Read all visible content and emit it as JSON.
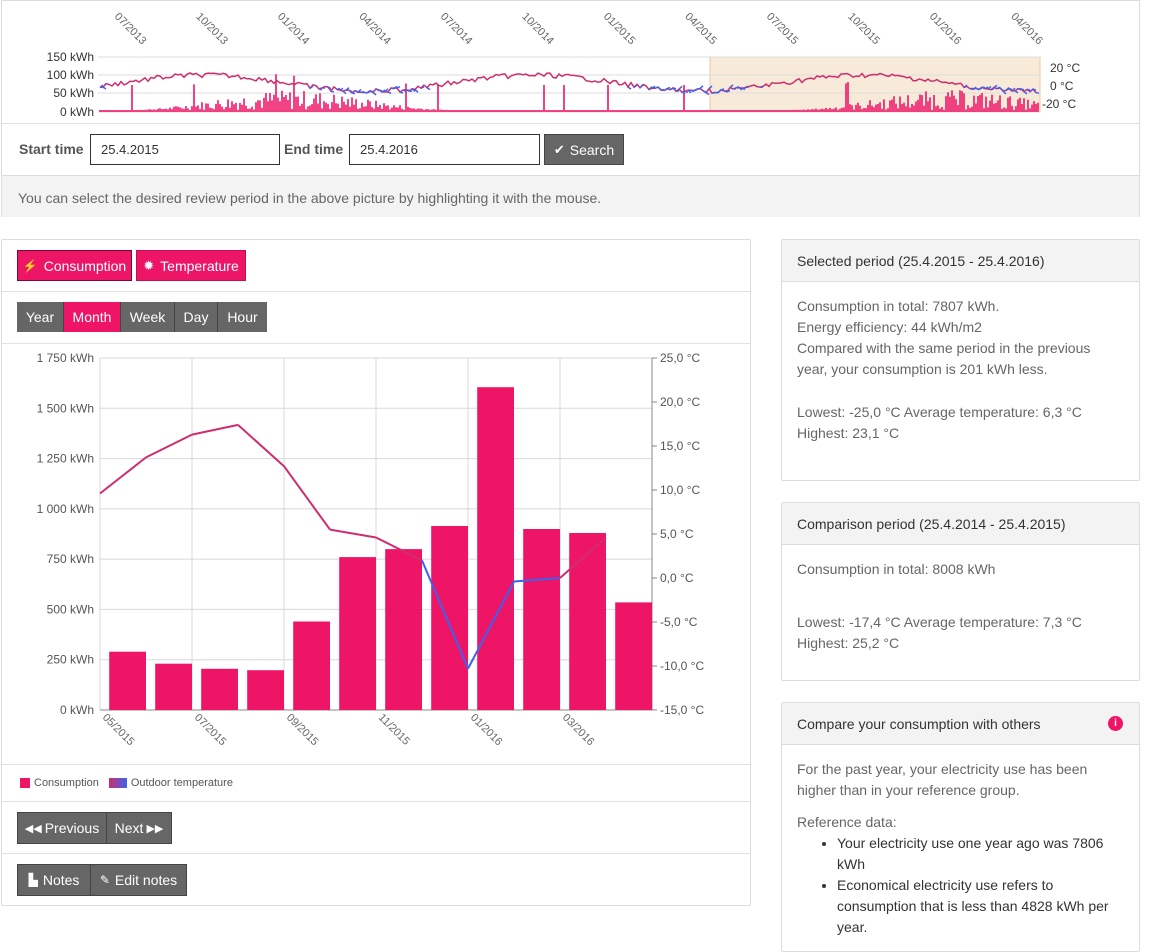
{
  "overview": {
    "y_labels_left": [
      "150 kWh",
      "100 kWh",
      "50 kWh",
      "0 kWh"
    ],
    "y_labels_right": [
      "20 °C",
      "0 °C",
      "-20 °C"
    ],
    "x_labels": [
      "07/2013",
      "10/2013",
      "01/2014",
      "04/2014",
      "07/2014",
      "10/2014",
      "01/2015",
      "04/2015",
      "07/2015",
      "10/2015",
      "01/2016",
      "04/2016"
    ]
  },
  "search": {
    "start_label": "Start time",
    "start_value": "25.4.2015",
    "end_label": "End time",
    "end_value": "25.4.2016",
    "button_label": "Search",
    "hint": "You can select the desired review period in the above picture by highlighting it with the mouse."
  },
  "toggles": {
    "consumption": "Consumption",
    "temperature": "Temperature"
  },
  "resolution": {
    "options": [
      "Year",
      "Month",
      "Week",
      "Day",
      "Hour"
    ],
    "active": "Month"
  },
  "colors": {
    "consumption": "#ee1566",
    "temperature_warm": "#cf2d6e",
    "temperature_cold": "#3a64f0",
    "button_dark": "#666666"
  },
  "chart_data": {
    "type": "bar",
    "categories": [
      "05/2015",
      "06/2015",
      "07/2015",
      "08/2015",
      "09/2015",
      "10/2015",
      "11/2015",
      "12/2015",
      "01/2016",
      "02/2016",
      "03/2016",
      "04/2016"
    ],
    "x_tick_labels": [
      "05/2015",
      "07/2015",
      "09/2015",
      "11/2015",
      "01/2016",
      "03/2016"
    ],
    "series": [
      {
        "name": "Consumption",
        "axis": "left",
        "type": "bar",
        "values": [
          290,
          230,
          205,
          198,
          440,
          760,
          800,
          915,
          1605,
          900,
          880,
          535
        ]
      },
      {
        "name": "Outdoor temperature",
        "axis": "right",
        "type": "line",
        "values": [
          9.6,
          13.7,
          16.3,
          17.4,
          12.7,
          5.5,
          4.6,
          2.0,
          -10.3,
          -0.4,
          0.0,
          4.6
        ]
      }
    ],
    "y_left_ticks": [
      "1 750 kWh",
      "1 500 kWh",
      "1 250 kWh",
      "1 000 kWh",
      "750 kWh",
      "500 kWh",
      "250 kWh",
      "0 kWh"
    ],
    "y_right_ticks": [
      "25,0 °C",
      "20,0 °C",
      "15,0 °C",
      "10,0 °C",
      "5,0 °C",
      "0,0 °C",
      "-5,0 °C",
      "-10,0 °C",
      "-15,0 °C"
    ],
    "ylim_left": [
      0,
      1750
    ],
    "ylim_right": [
      -15,
      25
    ],
    "grid": true,
    "legend": [
      "Consumption",
      "Outdoor temperature"
    ]
  },
  "pager": {
    "previous": "Previous",
    "next": "Next"
  },
  "notes": {
    "notes_label": "Notes",
    "edit_label": "Edit notes"
  },
  "selected_period": {
    "title": "Selected period  (25.4.2015 - 25.4.2016)",
    "lines": [
      "Consumption in total: 7807 kWh.",
      "Energy efficiency: 44 kWh/m2",
      "Compared with the same period in the previous year, your consumption is 201 kWh less."
    ],
    "temp_line1": "Lowest: -25,0 °C Average temperature: 6,3 °C",
    "temp_line2": "Highest: 23,1 °C"
  },
  "comparison_period": {
    "title": "Comparison period (25.4.2014 - 25.4.2015)",
    "total": "Consumption in total: 8008 kWh",
    "temp_line1": "Lowest: -17,4 °C Average temperature: 7,3 °C",
    "temp_line2": "Highest: 25,2 °C"
  },
  "compare_others": {
    "title": "Compare your consumption with others",
    "summary": "For the past year, your electricity use has been higher than in your reference group.",
    "ref_heading": "Reference data:",
    "refs": [
      "Your electricity use one year ago was 7806 kWh",
      "Economical electricity use refers to consumption that is less than 4828 kWh per year."
    ]
  }
}
